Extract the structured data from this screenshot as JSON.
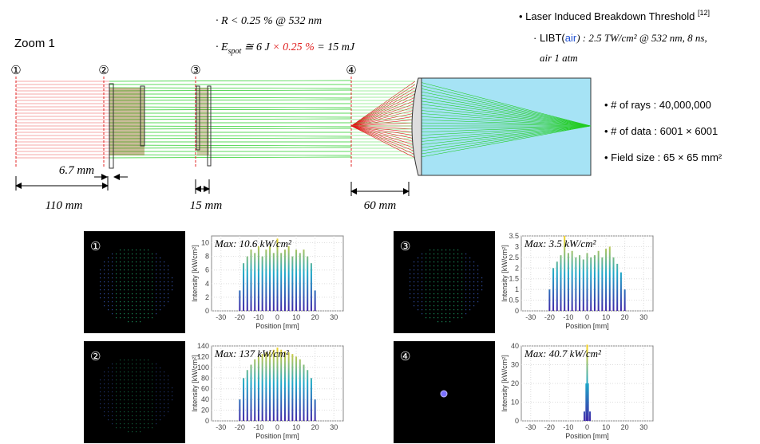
{
  "header": {
    "zoom_label": "Zoom 1",
    "reflectance": "· R < 0.25 % @ 532 nm",
    "energy": {
      "prefix": "· E",
      "subscript": "spot",
      "before": " ≅ 6 J ",
      "highlight": "× 0.25 %",
      "after": " = 15 mJ"
    }
  },
  "libt": {
    "title": "• Laser Induced Breakdown Threshold",
    "ref": "[12]",
    "line1_prefix": "· LIBT(",
    "line1_air": "air",
    "line1_rest": ") : 2.5 TW/cm² @ 532 nm, 8 ns,",
    "line2": "air 1 atm"
  },
  "diagram": {
    "planes": [
      "①",
      "②",
      "③",
      "④"
    ],
    "dimensions": [
      "6.7 mm",
      "110 mm",
      "15 mm",
      "60 mm"
    ]
  },
  "simulation": [
    "• # of rays : 40,000,000",
    "• # of data : 6001 × 6001",
    "• Field size : 65 × 65 mm²"
  ],
  "chart_data": [
    {
      "type": "spike",
      "label": "①",
      "annotation": "Max: 10.6 kW/cm²",
      "x_label": "Position [mm]",
      "y_label": "Intensity [kW/cm²]",
      "x": [
        -20,
        -18,
        -16,
        -14,
        -12,
        -10,
        -8,
        -6,
        -4,
        -2,
        0,
        2,
        4,
        6,
        8,
        10,
        12,
        14,
        16,
        18,
        20
      ],
      "values": [
        3,
        7,
        8,
        9,
        8.5,
        9.5,
        8,
        9,
        9.5,
        8.5,
        10.6,
        8.5,
        9,
        9.5,
        8,
        9,
        8.5,
        9,
        8,
        7,
        3
      ],
      "xlim": [
        -35,
        35
      ],
      "xticks": [
        -30,
        -20,
        -10,
        0,
        10,
        20,
        30
      ],
      "ylim": [
        0,
        11
      ],
      "yticks": [
        0,
        2,
        4,
        6,
        8,
        10
      ],
      "colors": [
        "#3e26a8",
        "#1fa8c9",
        "#f9d423"
      ],
      "grid": true
    },
    {
      "type": "spike",
      "label": "②",
      "annotation": "Max: 137 kW/cm²",
      "x_label": "Position [mm]",
      "y_label": "Intensity [kW/cm²]",
      "x": [
        -20,
        -18,
        -16,
        -14,
        -12,
        -10,
        -8,
        -6,
        -4,
        -2,
        0,
        2,
        4,
        6,
        8,
        10,
        12,
        14,
        16,
        18,
        20
      ],
      "values": [
        40,
        80,
        95,
        105,
        115,
        120,
        125,
        128,
        130,
        133,
        137,
        133,
        130,
        128,
        125,
        120,
        115,
        105,
        95,
        80,
        40
      ],
      "xlim": [
        -35,
        35
      ],
      "xticks": [
        -30,
        -20,
        -10,
        0,
        10,
        20,
        30
      ],
      "ylim": [
        0,
        140
      ],
      "yticks": [
        0,
        20,
        40,
        60,
        80,
        100,
        120,
        140
      ],
      "colors": [
        "#3e26a8",
        "#1fa8c9",
        "#f9d423"
      ],
      "grid": true
    },
    {
      "type": "spike",
      "label": "③",
      "annotation": "Max: 3.5 kW/cm²",
      "x_label": "Position [mm]",
      "y_label": "Intensity [kW/cm²]",
      "x": [
        -20,
        -18,
        -16,
        -14,
        -12,
        -10,
        -8,
        -6,
        -4,
        -2,
        0,
        2,
        4,
        6,
        8,
        10,
        12,
        14,
        16,
        18,
        20
      ],
      "values": [
        1.0,
        2.0,
        2.3,
        2.6,
        3.5,
        2.7,
        2.8,
        2.5,
        2.6,
        2.4,
        2.7,
        2.5,
        2.6,
        2.8,
        2.5,
        2.9,
        3.0,
        2.5,
        2.2,
        1.8,
        1.0
      ],
      "xlim": [
        -35,
        35
      ],
      "xticks": [
        -30,
        -20,
        -10,
        0,
        10,
        20,
        30
      ],
      "ylim": [
        0,
        3.5
      ],
      "yticks": [
        0,
        0.5,
        1,
        1.5,
        2,
        2.5,
        3,
        3.5
      ],
      "colors": [
        "#3e26a8",
        "#1fa8c9",
        "#f9d423"
      ],
      "grid": true
    },
    {
      "type": "spike",
      "label": "④",
      "annotation": "Max: 40.7 kW/cm²",
      "x_label": "Position [mm]",
      "y_label": "Intensity [kW/cm²]",
      "x": [
        -1.5,
        -0.5,
        0,
        0.5,
        1.5
      ],
      "values": [
        5,
        20,
        40.7,
        20,
        5
      ],
      "xlim": [
        -35,
        35
      ],
      "xticks": [
        -30,
        -20,
        -10,
        0,
        10,
        20,
        30
      ],
      "ylim": [
        0,
        40
      ],
      "yticks": [
        0,
        10,
        20,
        30,
        40
      ],
      "colors": [
        "#3e26a8",
        "#1fa8c9",
        "#f9d423"
      ],
      "grid": true
    }
  ]
}
